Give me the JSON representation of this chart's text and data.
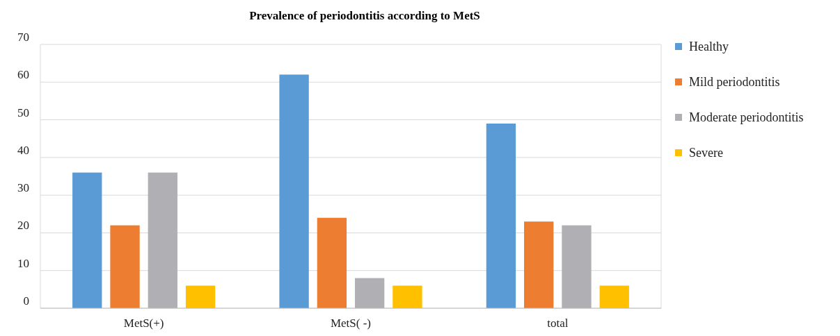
{
  "chart_data": {
    "type": "bar",
    "title": "Prevalence of periodontitis according to MetS",
    "categories": [
      "MetS(+)",
      "MetS( -)",
      "total"
    ],
    "series": [
      {
        "name": "Healthy",
        "color": "#5b9bd5",
        "values": [
          36,
          62,
          49
        ]
      },
      {
        "name": "Mild periodontitis",
        "color": "#ed7d31",
        "values": [
          22,
          24,
          23
        ]
      },
      {
        "name": "Moderate periodontitis",
        "color": "#b0b0b4",
        "values": [
          36,
          8,
          22
        ]
      },
      {
        "name": "Severe",
        "color": "#ffc000",
        "values": [
          6,
          6,
          6
        ]
      }
    ],
    "ylim": [
      0,
      70
    ],
    "yticks": [
      0,
      10,
      20,
      30,
      40,
      50,
      60,
      70
    ],
    "grid": "y",
    "legend": "top right"
  }
}
